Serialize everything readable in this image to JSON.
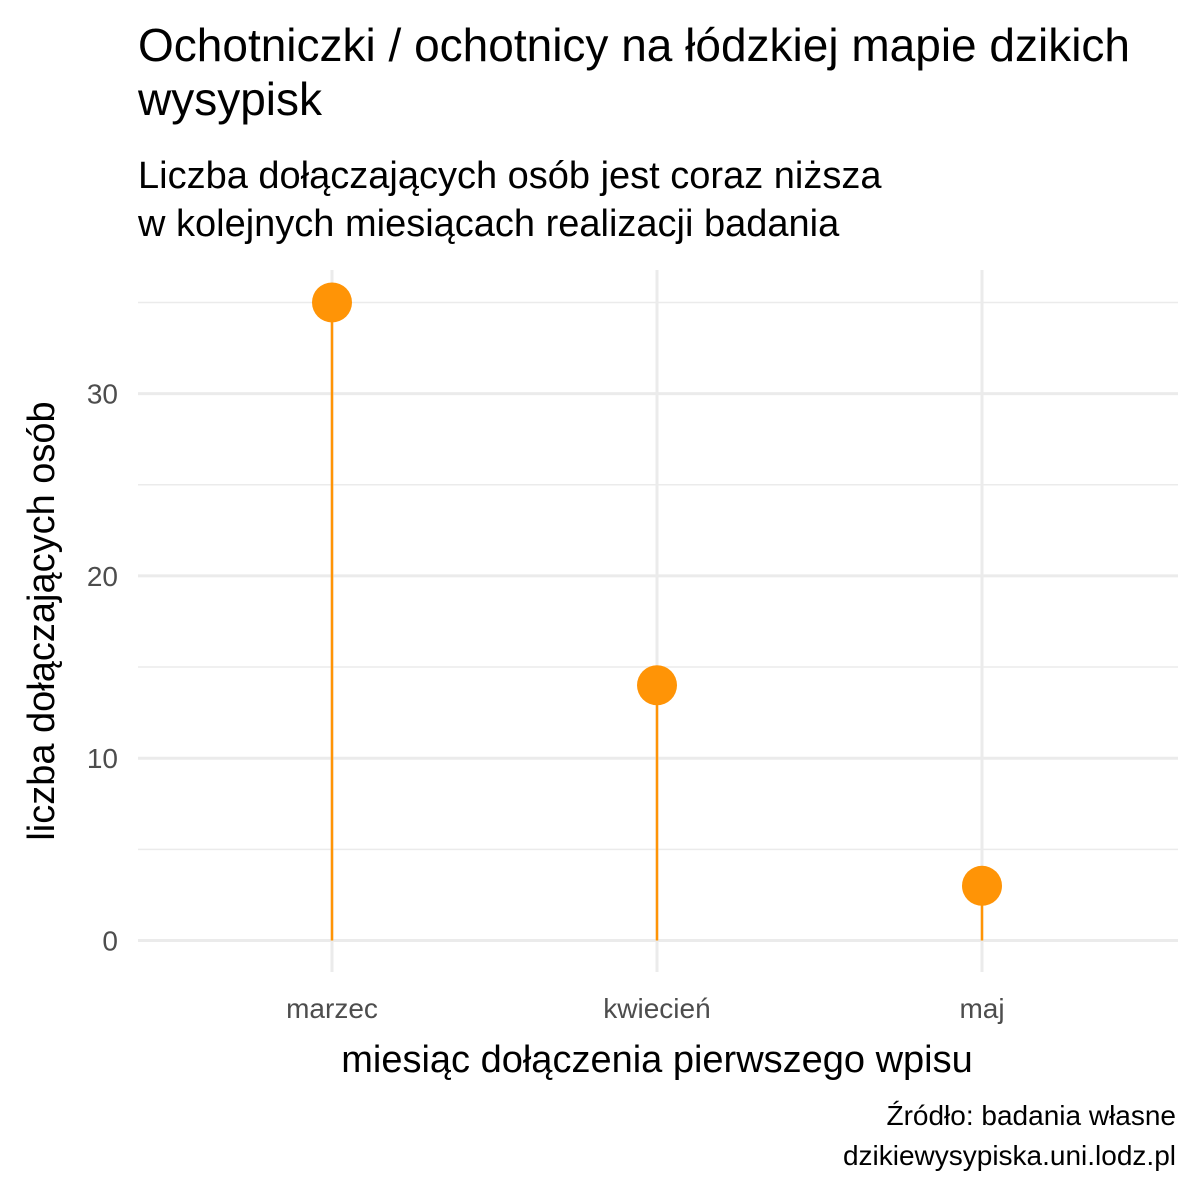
{
  "chart_data": {
    "type": "lollipop",
    "title": "Ochotniczki / ochotnicy na łódzkiej mapie dzikich wysypisk",
    "subtitle_lines": [
      "Liczba dołączających osób jest coraz niższa",
      "w kolejnych miesiącach realizacji badania"
    ],
    "xlabel": "miesiąc dołączenia pierwszego wpisu",
    "ylabel": "liczba dołączających osób",
    "categories": [
      "marzec",
      "kwiecień",
      "maj"
    ],
    "values": [
      35,
      14,
      3
    ],
    "y_ticks": [
      0,
      10,
      20,
      30
    ],
    "ylim": [
      0,
      35
    ],
    "grid": true,
    "color": "#FF9406",
    "caption_lines": [
      "Źródło: badania własne",
      "dzikiewysypiska.uni.lodz.pl"
    ]
  }
}
